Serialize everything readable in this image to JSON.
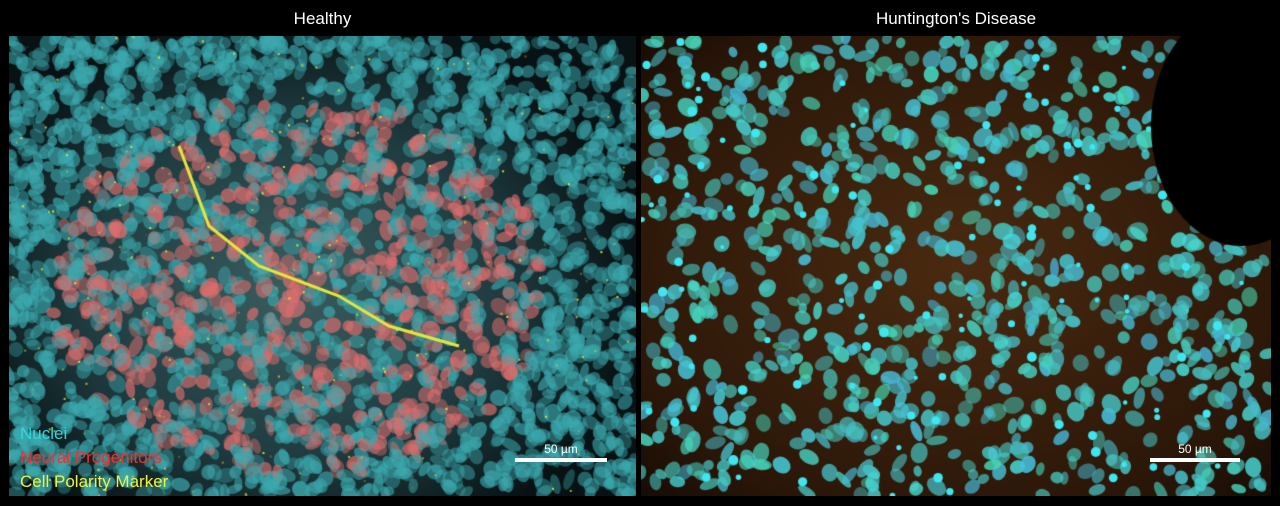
{
  "panels": [
    {
      "title": "Healthy",
      "scale_label": "50 µm"
    },
    {
      "title": "Huntington's Disease",
      "scale_label": "50 µm"
    }
  ],
  "legend": [
    {
      "label": "Nuclei",
      "color": "#33d6e0"
    },
    {
      "label": "Neural Progenitors",
      "color": "#ff2a2a"
    },
    {
      "label": "Cell Polarity Marker",
      "color": "#f2f23a"
    }
  ]
}
